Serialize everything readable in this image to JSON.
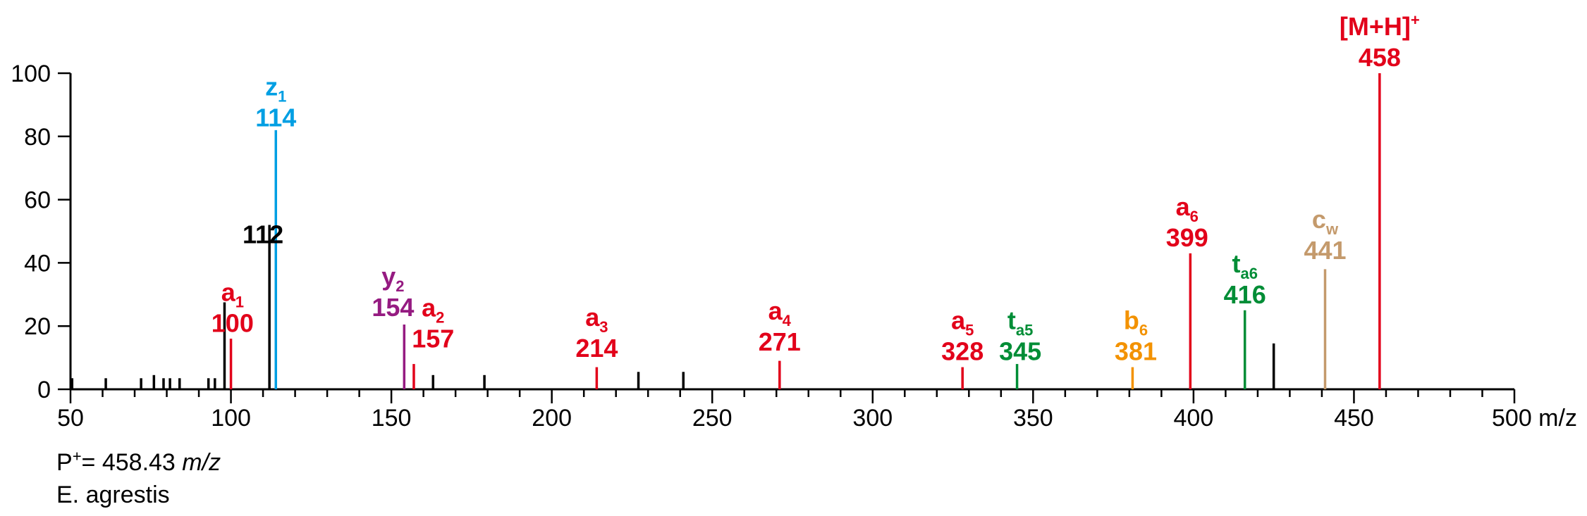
{
  "chart_data": {
    "type": "bar",
    "xlabel": "m/z",
    "ylabel": "",
    "xlim": [
      50,
      500
    ],
    "ylim": [
      0,
      100
    ],
    "x_major_ticks": [
      50,
      100,
      150,
      200,
      250,
      300,
      350,
      400,
      450,
      500
    ],
    "x_minor_step": 10,
    "y_ticks": [
      0,
      20,
      40,
      60,
      80,
      100
    ],
    "grid": false,
    "colors": {
      "black": "#000000",
      "a_ion": "#e2001a",
      "z_ion": "#009fe3",
      "y_ion": "#951b81",
      "t_ion": "#008d36",
      "b_ion": "#f39200",
      "c_ion": "#c49a6c"
    },
    "peaks": [
      {
        "mz": 50.5,
        "intensity": 3.5,
        "color": "#000000"
      },
      {
        "mz": 61,
        "intensity": 3.5,
        "color": "#000000"
      },
      {
        "mz": 72,
        "intensity": 3.5,
        "color": "#000000"
      },
      {
        "mz": 76,
        "intensity": 4.5,
        "color": "#000000"
      },
      {
        "mz": 79,
        "intensity": 3.5,
        "color": "#000000"
      },
      {
        "mz": 81,
        "intensity": 3.5,
        "color": "#000000"
      },
      {
        "mz": 84,
        "intensity": 3.5,
        "color": "#000000"
      },
      {
        "mz": 93,
        "intensity": 3.5,
        "color": "#000000"
      },
      {
        "mz": 95,
        "intensity": 3.5,
        "color": "#000000"
      },
      {
        "mz": 98,
        "intensity": 27.5,
        "color": "#000000"
      },
      {
        "mz": 100,
        "intensity": 16,
        "color": "#e2001a"
      },
      {
        "mz": 112,
        "intensity": 52,
        "color": "#000000"
      },
      {
        "mz": 114,
        "intensity": 82,
        "color": "#009fe3"
      },
      {
        "mz": 154,
        "intensity": 20.5,
        "color": "#951b81"
      },
      {
        "mz": 157,
        "intensity": 8,
        "color": "#e2001a"
      },
      {
        "mz": 163,
        "intensity": 4.5,
        "color": "#000000"
      },
      {
        "mz": 179,
        "intensity": 4.5,
        "color": "#000000"
      },
      {
        "mz": 214,
        "intensity": 7,
        "color": "#e2001a"
      },
      {
        "mz": 227,
        "intensity": 5.5,
        "color": "#000000"
      },
      {
        "mz": 241,
        "intensity": 5.5,
        "color": "#000000"
      },
      {
        "mz": 271,
        "intensity": 9,
        "color": "#e2001a"
      },
      {
        "mz": 328,
        "intensity": 7,
        "color": "#e2001a"
      },
      {
        "mz": 345,
        "intensity": 8,
        "color": "#008d36"
      },
      {
        "mz": 381,
        "intensity": 7,
        "color": "#f39200"
      },
      {
        "mz": 399,
        "intensity": 43,
        "color": "#e2001a"
      },
      {
        "mz": 416,
        "intensity": 25,
        "color": "#008d36"
      },
      {
        "mz": 425,
        "intensity": 14.5,
        "color": "#000000"
      },
      {
        "mz": 441,
        "intensity": 38,
        "color": "#c49a6c"
      },
      {
        "mz": 458,
        "intensity": 100,
        "color": "#e2001a"
      }
    ],
    "annotations": [
      {
        "ion": "a",
        "sub": "1",
        "mass": "100",
        "color": "#e2001a",
        "mz": 100.5,
        "y_value": 28
      },
      {
        "ion": "z",
        "sub": "1",
        "mass": "114",
        "color": "#009fe3",
        "mz": 114,
        "y_value": 93
      },
      {
        "ion": "",
        "sub": "",
        "mass": "112",
        "color": "#000000",
        "mz": 110,
        "y_value": 56
      },
      {
        "ion": "y",
        "sub": "2",
        "mass": "154",
        "color": "#951b81",
        "mz": 150.5,
        "y_value": 33
      },
      {
        "ion": "a",
        "sub": "2",
        "mass": "157",
        "color": "#e2001a",
        "mz": 163,
        "y_value": 23
      },
      {
        "ion": "a",
        "sub": "3",
        "mass": "214",
        "color": "#e2001a",
        "mz": 214,
        "y_value": 20
      },
      {
        "ion": "a",
        "sub": "4",
        "mass": "271",
        "color": "#e2001a",
        "mz": 271,
        "y_value": 22
      },
      {
        "ion": "a",
        "sub": "5",
        "mass": "328",
        "color": "#e2001a",
        "mz": 328,
        "y_value": 19
      },
      {
        "ion": "t",
        "sub": "a5",
        "mass": "345",
        "color": "#008d36",
        "mz": 346,
        "y_value": 19
      },
      {
        "ion": "b",
        "sub": "6",
        "mass": "381",
        "color": "#f39200",
        "mz": 382,
        "y_value": 19
      },
      {
        "ion": "a",
        "sub": "6",
        "mass": "399",
        "color": "#e2001a",
        "mz": 398,
        "y_value": 55
      },
      {
        "ion": "t",
        "sub": "a6",
        "mass": "416",
        "color": "#008d36",
        "mz": 416,
        "y_value": 37
      },
      {
        "ion": "c",
        "sub": "w",
        "mass": "441",
        "color": "#c49a6c",
        "mz": 441,
        "y_value": 51
      },
      {
        "ion": "[M+H]",
        "sub": "",
        "sup": "+",
        "mass": "458",
        "color": "#e2001a",
        "mz": 458,
        "y_value": 112
      }
    ]
  },
  "footer": {
    "precursor_prefix": "P",
    "precursor_sup": "+",
    "precursor_value": "= 458.43 ",
    "precursor_unit": "m/z",
    "species": "E. agrestis"
  }
}
